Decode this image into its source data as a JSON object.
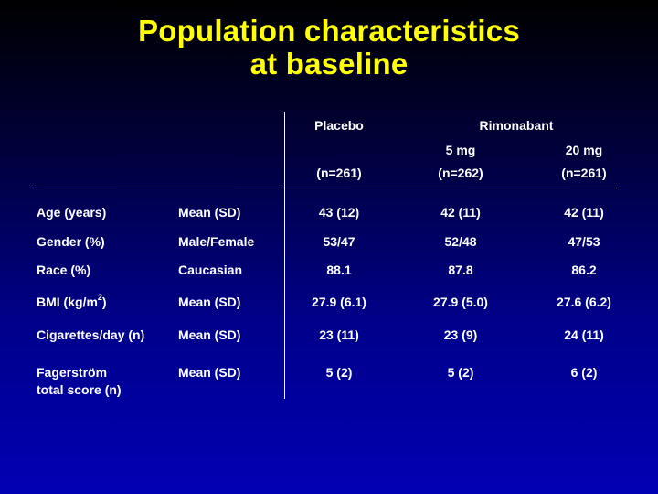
{
  "title": {
    "line1": "Population characteristics",
    "line2": "at baseline"
  },
  "header": {
    "placebo": "Placebo",
    "rimonabant": "Rimonabant",
    "dose_5": "5 mg",
    "dose_20": "20 mg",
    "n_placebo": "(n=261)",
    "n_5": "(n=262)",
    "n_20": "(n=261)"
  },
  "rows": [
    {
      "label": "Age (years)",
      "stat": "Mean (SD)",
      "placebo": "43 (12)",
      "r5": "42 (11)",
      "r20": "42 (11)"
    },
    {
      "label": "Gender (%)",
      "stat": "Male/Female",
      "placebo": "53/47",
      "r5": "52/48",
      "r20": "47/53"
    },
    {
      "label": "Race (%)",
      "stat": "Caucasian",
      "placebo": "88.1",
      "r5": "87.8",
      "r20": "86.2"
    },
    {
      "label": "BMI (kg/m",
      "label_sup": "2",
      "label_suffix": ")",
      "stat": "Mean (SD)",
      "placebo": "27.9 (6.1)",
      "r5": "27.9 (5.0)",
      "r20": "27.6 (6.2)"
    },
    {
      "label": "Cigarettes/day (n)",
      "stat": "Mean (SD)",
      "placebo": "23 (11)",
      "r5": "23 (9)",
      "r20": "24 (11)"
    },
    {
      "label": "Fagerström",
      "label_line2": "total score (n)",
      "stat": "Mean (SD)",
      "placebo": "5 (2)",
      "r5": "5 (2)",
      "r20": "6 (2)"
    }
  ]
}
